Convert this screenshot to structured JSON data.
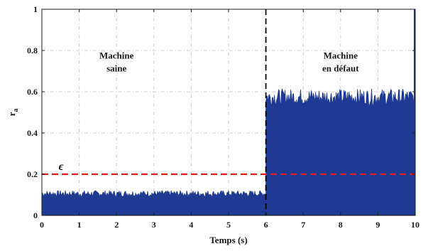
{
  "chart_data": {
    "type": "area",
    "xlabel": "Temps (s)",
    "ylabel": "r",
    "ylabel_subscript": "a",
    "xlim": [
      0,
      10
    ],
    "ylim": [
      0,
      1
    ],
    "xticks": [
      0,
      1,
      2,
      3,
      4,
      5,
      6,
      7,
      8,
      9,
      10
    ],
    "yticks": [
      0,
      0.2,
      0.4,
      0.6,
      0.8,
      1
    ],
    "ytick_labels": [
      "0",
      "0.2",
      "0.4",
      "0.6",
      "0.8",
      "1"
    ],
    "grid": true,
    "series": [
      {
        "color": "#1f3a93",
        "segments": [
          {
            "x_start": 0,
            "x_end": 6,
            "mean": 0.1,
            "max": 0.135,
            "min": 0.085
          },
          {
            "x_start": 6,
            "x_end": 10,
            "min": 0.0,
            "mean": 0.57,
            "max": 0.62
          }
        ]
      }
    ],
    "threshold": {
      "value": 0.2,
      "color": "#e41a1c",
      "label": "ϵ"
    },
    "event_line": {
      "x": 6,
      "color": "#000000"
    },
    "annotations": [
      {
        "lines": [
          "Machine",
          "saine"
        ],
        "x": 2.0,
        "y": 0.76
      },
      {
        "lines": [
          "Machine",
          "en défaut"
        ],
        "x": 8.0,
        "y": 0.76
      }
    ]
  }
}
